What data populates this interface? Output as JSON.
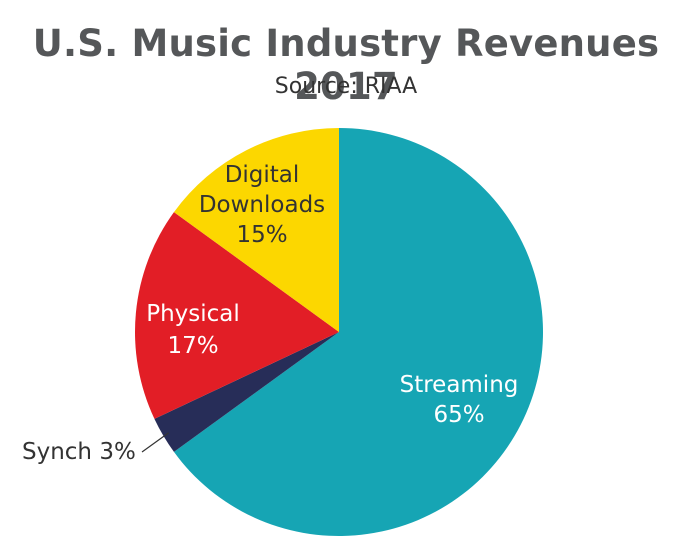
{
  "chart_data": {
    "type": "pie",
    "title": "U.S. Music Industry Revenues 2017",
    "subtitle": "Source: RIAA",
    "start_angle_deg": 0,
    "direction": "clockwise",
    "slices": [
      {
        "name": "Streaming",
        "label_lines": [
          "Streaming",
          "65%"
        ],
        "value": 65,
        "color": "#16a5b4",
        "label_color": "#ffffff"
      },
      {
        "name": "Synch",
        "label_lines": [
          "Synch 3%"
        ],
        "value": 3,
        "color": "#272d58",
        "label_color": "#333333",
        "external": true
      },
      {
        "name": "Physical",
        "label_lines": [
          "Physical",
          "17%"
        ],
        "value": 17,
        "color": "#e21e26",
        "label_color": "#ffffff"
      },
      {
        "name": "Digital Downloads",
        "label_lines": [
          "Digital",
          "Downloads",
          "15%"
        ],
        "value": 15,
        "color": "#fcd700",
        "label_color": "#333333"
      }
    ]
  }
}
